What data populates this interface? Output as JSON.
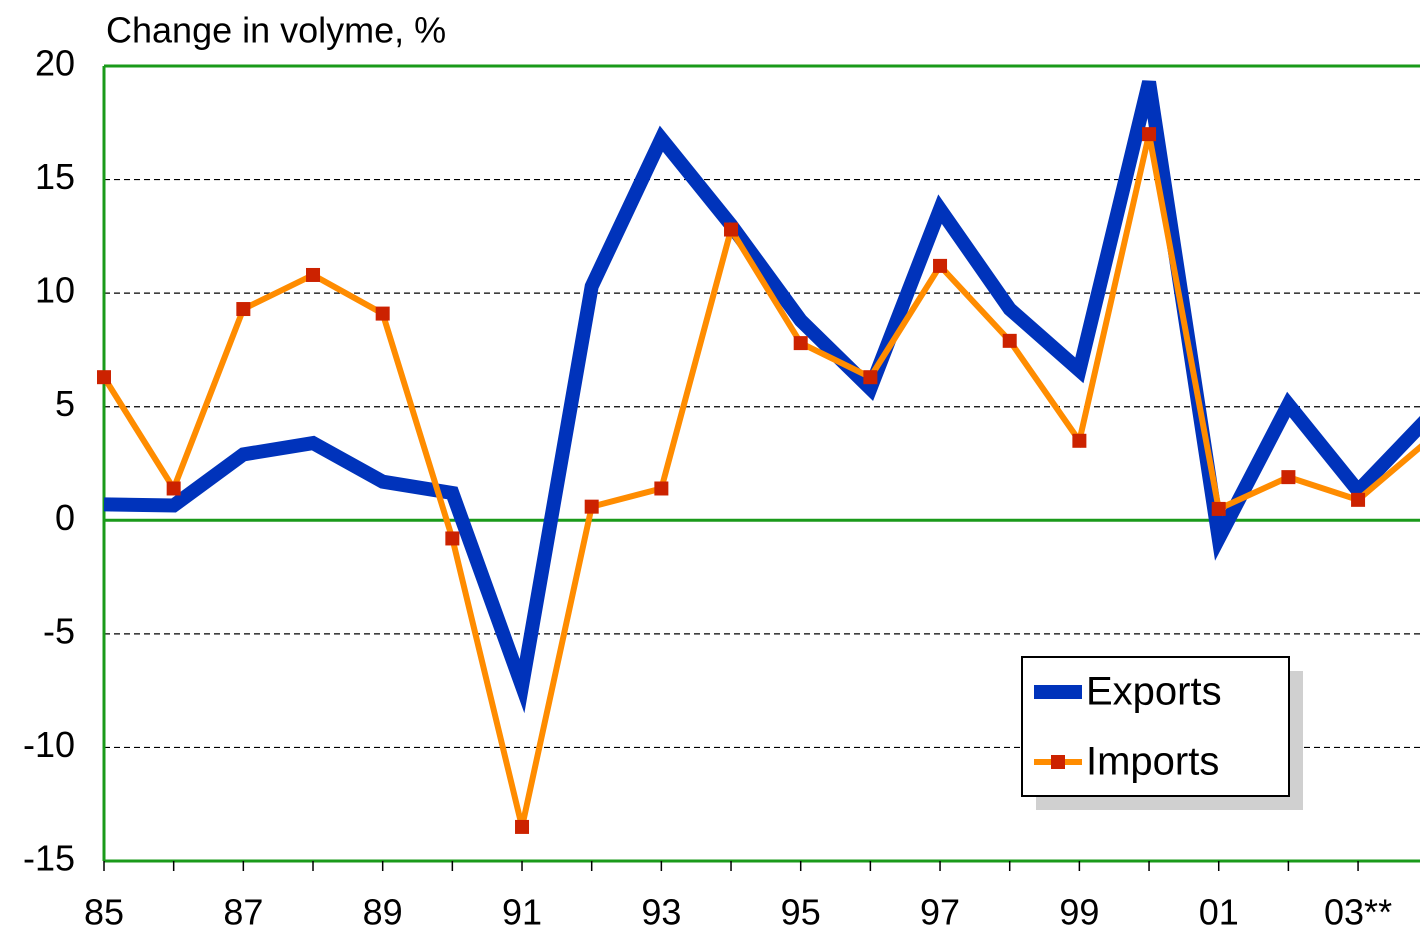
{
  "chart_data": {
    "type": "line",
    "title": "Change in volyme, %",
    "categories": [
      "85",
      null,
      "87",
      null,
      "89",
      null,
      "91",
      null,
      "93",
      null,
      "95",
      null,
      "97",
      null,
      "99",
      null,
      "01",
      null,
      "03**",
      null
    ],
    "series": [
      {
        "name": "Exports",
        "color": "#0033bb",
        "values": [
          0.7,
          0.65,
          2.9,
          3.4,
          1.7,
          1.2,
          -7.3,
          10.3,
          16.8,
          13.0,
          8.8,
          5.8,
          13.7,
          9.3,
          6.6,
          19.3,
          -0.8,
          5.1,
          1.3,
          4.5
        ]
      },
      {
        "name": "Imports",
        "color": "#ff8c00",
        "values": [
          6.3,
          1.4,
          9.3,
          10.8,
          9.1,
          -0.8,
          -13.5,
          0.6,
          1.4,
          12.8,
          7.8,
          6.3,
          11.2,
          7.9,
          3.5,
          17.0,
          0.5,
          1.9,
          0.9,
          3.5
        ]
      }
    ],
    "ylim": [
      -15,
      20
    ],
    "yticks": [
      -15,
      -10,
      -5,
      0,
      5,
      10,
      15,
      20
    ],
    "grid": true,
    "legend": "lower-right"
  }
}
